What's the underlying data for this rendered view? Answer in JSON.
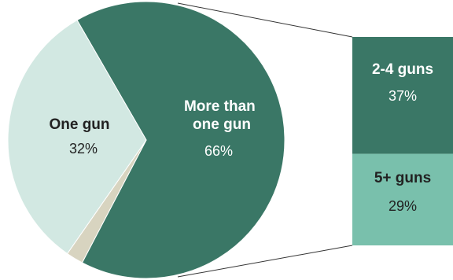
{
  "chart_data": {
    "type": "pie",
    "slices": [
      {
        "label_lines": [
          "More than",
          "one gun"
        ],
        "value": 66,
        "value_label": "66%",
        "color": "#3a7766",
        "text_color": "#ffffff"
      },
      {
        "label_lines": [
          "",
          ""
        ],
        "value": 2,
        "value_label": "",
        "color": "#d8d4c0",
        "text_color": "#333333"
      },
      {
        "label_lines": [
          "One gun",
          ""
        ],
        "value": 32,
        "value_label": "32%",
        "color": "#d2e8e2",
        "text_color": "#222222"
      }
    ],
    "breakdown": {
      "of_slice": 0,
      "segments": [
        {
          "label": "2-4 guns",
          "value": 37,
          "value_label": "37%",
          "color": "#3a7766",
          "text_color": "#ffffff"
        },
        {
          "label": "5+ guns",
          "value": 29,
          "value_label": "29%",
          "color": "#79c0ac",
          "text_color": "#222222"
        }
      ]
    }
  }
}
